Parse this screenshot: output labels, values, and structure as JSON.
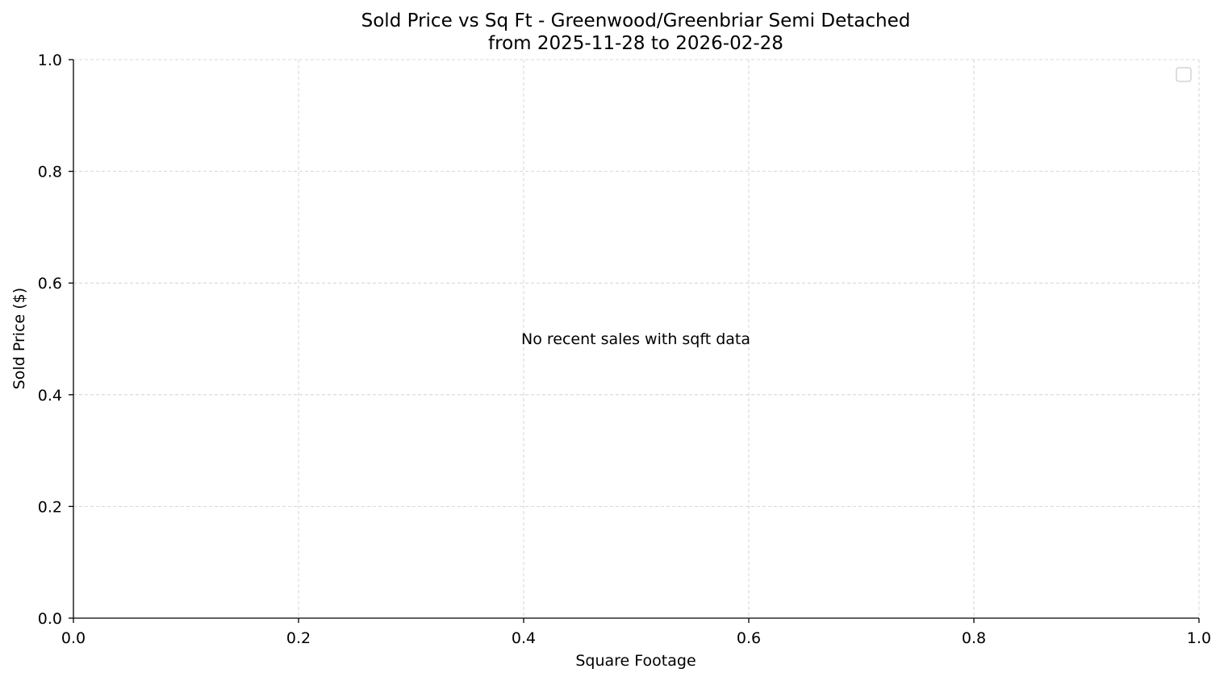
{
  "chart_data": {
    "type": "scatter",
    "title": "Sold Price vs Sq Ft - Greenwood/Greenbriar Semi Detached",
    "subtitle": "from 2025-11-28 to 2026-02-28",
    "xlabel": "Square Footage",
    "ylabel": "Sold Price ($)",
    "xlim": [
      0.0,
      1.0
    ],
    "ylim": [
      0.0,
      1.0
    ],
    "x_ticks": [
      "0.0",
      "0.2",
      "0.4",
      "0.6",
      "0.8",
      "1.0"
    ],
    "y_ticks": [
      "0.0",
      "0.2",
      "0.4",
      "0.6",
      "0.8",
      "1.0"
    ],
    "grid": true,
    "legend_placement": "upper-right",
    "legend_entries": [],
    "annotation": "No recent sales with sqft data",
    "series": []
  }
}
